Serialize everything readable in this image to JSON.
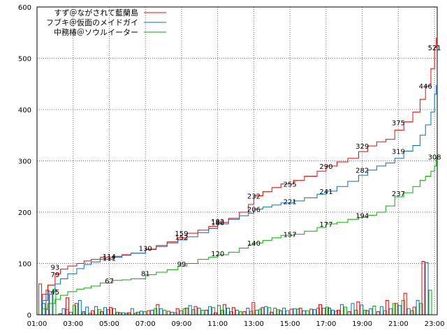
{
  "chart_data": {
    "type": "line",
    "ylim": [
      0,
      600
    ],
    "yticks": [
      "0",
      "100",
      "200",
      "300",
      "400",
      "500",
      "600"
    ],
    "xticks": [
      "01:00",
      "03:00",
      "05:00",
      "07:00",
      "09:00",
      "11:00",
      "13:00",
      "15:00",
      "17:00",
      "19:00",
      "21:00",
      "23:00"
    ],
    "xlim_hours": [
      1,
      23.15
    ],
    "grid": true,
    "legend_position": "top-left",
    "series": [
      {
        "name": "すず＠ながされて藍蘭島",
        "color": "#ff0000",
        "points": [
          [
            1,
            0
          ],
          [
            1.3,
            40
          ],
          [
            1.6,
            58
          ],
          [
            2,
            80
          ],
          [
            2.3,
            89
          ],
          [
            2.7,
            95
          ],
          [
            3.2,
            100
          ],
          [
            3.6,
            105
          ],
          [
            4,
            108
          ],
          [
            4.5,
            112
          ],
          [
            5.2,
            114
          ],
          [
            5.7,
            117
          ],
          [
            6.2,
            120
          ],
          [
            7,
            128
          ],
          [
            7.6,
            135
          ],
          [
            8.2,
            142
          ],
          [
            8.8,
            150
          ],
          [
            9.3,
            159
          ],
          [
            9.9,
            165
          ],
          [
            10.5,
            172
          ],
          [
            11,
            180
          ],
          [
            11.6,
            188
          ],
          [
            12.2,
            200
          ],
          [
            12.7,
            215
          ],
          [
            13,
            232
          ],
          [
            13.5,
            240
          ],
          [
            14,
            248
          ],
          [
            14.5,
            255
          ],
          [
            15.2,
            262
          ],
          [
            15.8,
            270
          ],
          [
            16.5,
            280
          ],
          [
            17,
            290
          ],
          [
            17.6,
            298
          ],
          [
            18.2,
            305
          ],
          [
            18.8,
            318
          ],
          [
            19.3,
            329
          ],
          [
            19.8,
            337
          ],
          [
            20.3,
            342
          ],
          [
            20.8,
            360
          ],
          [
            21.3,
            376
          ],
          [
            21.8,
            395
          ],
          [
            22.2,
            420
          ],
          [
            22.5,
            446
          ],
          [
            22.8,
            480
          ],
          [
            23,
            521
          ],
          [
            23.1,
            540
          ]
        ],
        "labels": [
          [
            2,
            93
          ],
          [
            5,
            114
          ],
          [
            7,
            130
          ],
          [
            9,
            159
          ],
          [
            11,
            180
          ],
          [
            13,
            232
          ],
          [
            15,
            255
          ],
          [
            17,
            290
          ],
          [
            19,
            329
          ],
          [
            21,
            375
          ],
          [
            22.5,
            446
          ],
          [
            23,
            521
          ]
        ]
      },
      {
        "name": "フブキ＠仮面のメイドガイ",
        "color": "#0070c0",
        "points": [
          [
            1,
            0
          ],
          [
            1.3,
            28
          ],
          [
            1.6,
            45
          ],
          [
            2,
            60
          ],
          [
            2.3,
            70
          ],
          [
            2.7,
            80
          ],
          [
            3.2,
            90
          ],
          [
            3.6,
            98
          ],
          [
            4,
            103
          ],
          [
            4.5,
            108
          ],
          [
            5.2,
            112
          ],
          [
            5.7,
            116
          ],
          [
            6.2,
            120
          ],
          [
            7,
            127
          ],
          [
            7.6,
            133
          ],
          [
            8.2,
            140
          ],
          [
            8.8,
            146
          ],
          [
            9.3,
            152
          ],
          [
            9.9,
            160
          ],
          [
            10.5,
            168
          ],
          [
            11,
            177
          ],
          [
            11.6,
            186
          ],
          [
            12.2,
            193
          ],
          [
            12.7,
            198
          ],
          [
            13,
            206
          ],
          [
            13.5,
            210
          ],
          [
            14,
            214
          ],
          [
            14.5,
            218
          ],
          [
            15.2,
            222
          ],
          [
            15.8,
            228
          ],
          [
            16.5,
            235
          ],
          [
            17,
            241
          ],
          [
            17.6,
            250
          ],
          [
            18.2,
            260
          ],
          [
            18.8,
            272
          ],
          [
            19.3,
            282
          ],
          [
            19.8,
            290
          ],
          [
            20.3,
            296
          ],
          [
            20.8,
            305
          ],
          [
            21.3,
            319
          ],
          [
            21.8,
            330
          ],
          [
            22.2,
            350
          ],
          [
            22.5,
            370
          ],
          [
            22.8,
            395
          ],
          [
            23,
            430
          ],
          [
            23.1,
            448
          ]
        ],
        "labels": [
          [
            2,
            79
          ],
          [
            5,
            111
          ],
          [
            9,
            152
          ],
          [
            11,
            182
          ],
          [
            13,
            206
          ],
          [
            15,
            221
          ],
          [
            17,
            241
          ],
          [
            19,
            282
          ],
          [
            21,
            319
          ]
        ]
      },
      {
        "name": "中務椿＠ソウルイーター",
        "color": "#00b000",
        "points": [
          [
            1,
            0
          ],
          [
            1.3,
            12
          ],
          [
            1.6,
            22
          ],
          [
            2,
            30
          ],
          [
            2.3,
            38
          ],
          [
            2.7,
            45
          ],
          [
            3.2,
            50
          ],
          [
            3.6,
            52
          ],
          [
            4,
            56
          ],
          [
            4.5,
            62
          ],
          [
            5.2,
            67
          ],
          [
            5.7,
            68
          ],
          [
            6.2,
            70
          ],
          [
            7,
            78
          ],
          [
            7.6,
            83
          ],
          [
            8.2,
            88
          ],
          [
            8.8,
            95
          ],
          [
            9.3,
            100
          ],
          [
            9.9,
            108
          ],
          [
            10.5,
            112
          ],
          [
            11,
            117
          ],
          [
            11.6,
            122
          ],
          [
            12.2,
            130
          ],
          [
            12.7,
            136
          ],
          [
            13,
            140
          ],
          [
            13.5,
            145
          ],
          [
            14,
            150
          ],
          [
            14.5,
            155
          ],
          [
            15.2,
            157
          ],
          [
            15.8,
            163
          ],
          [
            16.5,
            170
          ],
          [
            17,
            177
          ],
          [
            17.6,
            180
          ],
          [
            18.2,
            186
          ],
          [
            18.8,
            190
          ],
          [
            19.3,
            194
          ],
          [
            19.8,
            200
          ],
          [
            20.3,
            212
          ],
          [
            20.8,
            230
          ],
          [
            21.3,
            238
          ],
          [
            21.8,
            250
          ],
          [
            22.2,
            262
          ],
          [
            22.5,
            270
          ],
          [
            22.8,
            280
          ],
          [
            23,
            290
          ],
          [
            23.1,
            308
          ]
        ],
        "labels": [
          [
            2,
            45
          ],
          [
            5,
            67
          ],
          [
            7,
            81
          ],
          [
            9,
            99
          ],
          [
            11,
            120
          ],
          [
            13,
            140
          ],
          [
            15,
            157
          ],
          [
            17,
            177
          ],
          [
            19,
            194
          ],
          [
            21,
            237
          ],
          [
            23,
            308
          ]
        ]
      }
    ],
    "bars": [
      [
        1.1,
        60,
        22,
        10
      ],
      [
        1.5,
        48,
        40,
        50
      ],
      [
        2.2,
        2,
        12,
        10
      ],
      [
        2.6,
        33,
        5,
        18
      ],
      [
        3.1,
        22,
        28,
        3
      ],
      [
        3.5,
        6,
        15,
        3
      ],
      [
        4,
        8,
        16,
        10
      ],
      [
        4.5,
        6,
        14,
        10
      ],
      [
        5,
        14,
        12,
        5
      ],
      [
        5.5,
        4,
        4,
        3
      ],
      [
        6,
        4,
        12,
        3
      ],
      [
        6.5,
        5,
        7,
        6
      ],
      [
        7.1,
        8,
        9,
        12
      ],
      [
        7.6,
        20,
        12,
        9
      ],
      [
        8.2,
        7,
        5,
        4
      ],
      [
        8.7,
        12,
        8,
        12
      ],
      [
        9.2,
        13,
        18,
        10
      ],
      [
        9.7,
        16,
        13,
        9
      ],
      [
        10.3,
        9,
        16,
        14
      ],
      [
        10.8,
        4,
        18,
        9
      ],
      [
        11.3,
        20,
        13,
        6
      ],
      [
        11.8,
        14,
        9,
        6
      ],
      [
        12.4,
        6,
        13,
        7
      ],
      [
        12.9,
        24,
        9,
        11
      ],
      [
        13.4,
        14,
        16,
        14
      ],
      [
        13.9,
        5,
        13,
        10
      ],
      [
        14.4,
        8,
        13,
        8
      ],
      [
        15,
        11,
        12,
        11
      ],
      [
        15.5,
        13,
        8,
        8
      ],
      [
        16.1,
        11,
        10,
        13
      ],
      [
        16.6,
        20,
        13,
        15
      ],
      [
        17.1,
        13,
        9,
        7
      ],
      [
        17.6,
        9,
        20,
        15
      ],
      [
        18.2,
        6,
        22,
        9
      ],
      [
        18.7,
        25,
        19,
        9
      ],
      [
        19.2,
        8,
        12,
        17
      ],
      [
        19.8,
        6,
        16,
        8
      ],
      [
        20.3,
        28,
        12,
        22
      ],
      [
        20.8,
        22,
        18,
        28
      ],
      [
        21.3,
        42,
        12,
        8
      ],
      [
        21.8,
        15,
        28,
        22
      ],
      [
        22.3,
        104,
        102,
        48
      ]
    ]
  }
}
